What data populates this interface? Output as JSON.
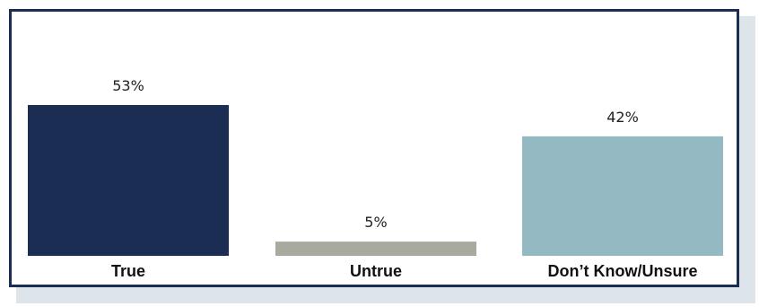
{
  "chart_data": {
    "type": "bar",
    "categories": [
      "True",
      "Untrue",
      "Don’t Know/Unsure"
    ],
    "values": [
      53,
      5,
      42
    ],
    "value_labels": [
      "53%",
      "5%",
      "42%"
    ],
    "title": "",
    "xlabel": "",
    "ylabel": "",
    "ylim": [
      0,
      60
    ],
    "grid": false,
    "colors": [
      "#1b2d53",
      "#a8aa9f",
      "#94b9c2"
    ]
  }
}
